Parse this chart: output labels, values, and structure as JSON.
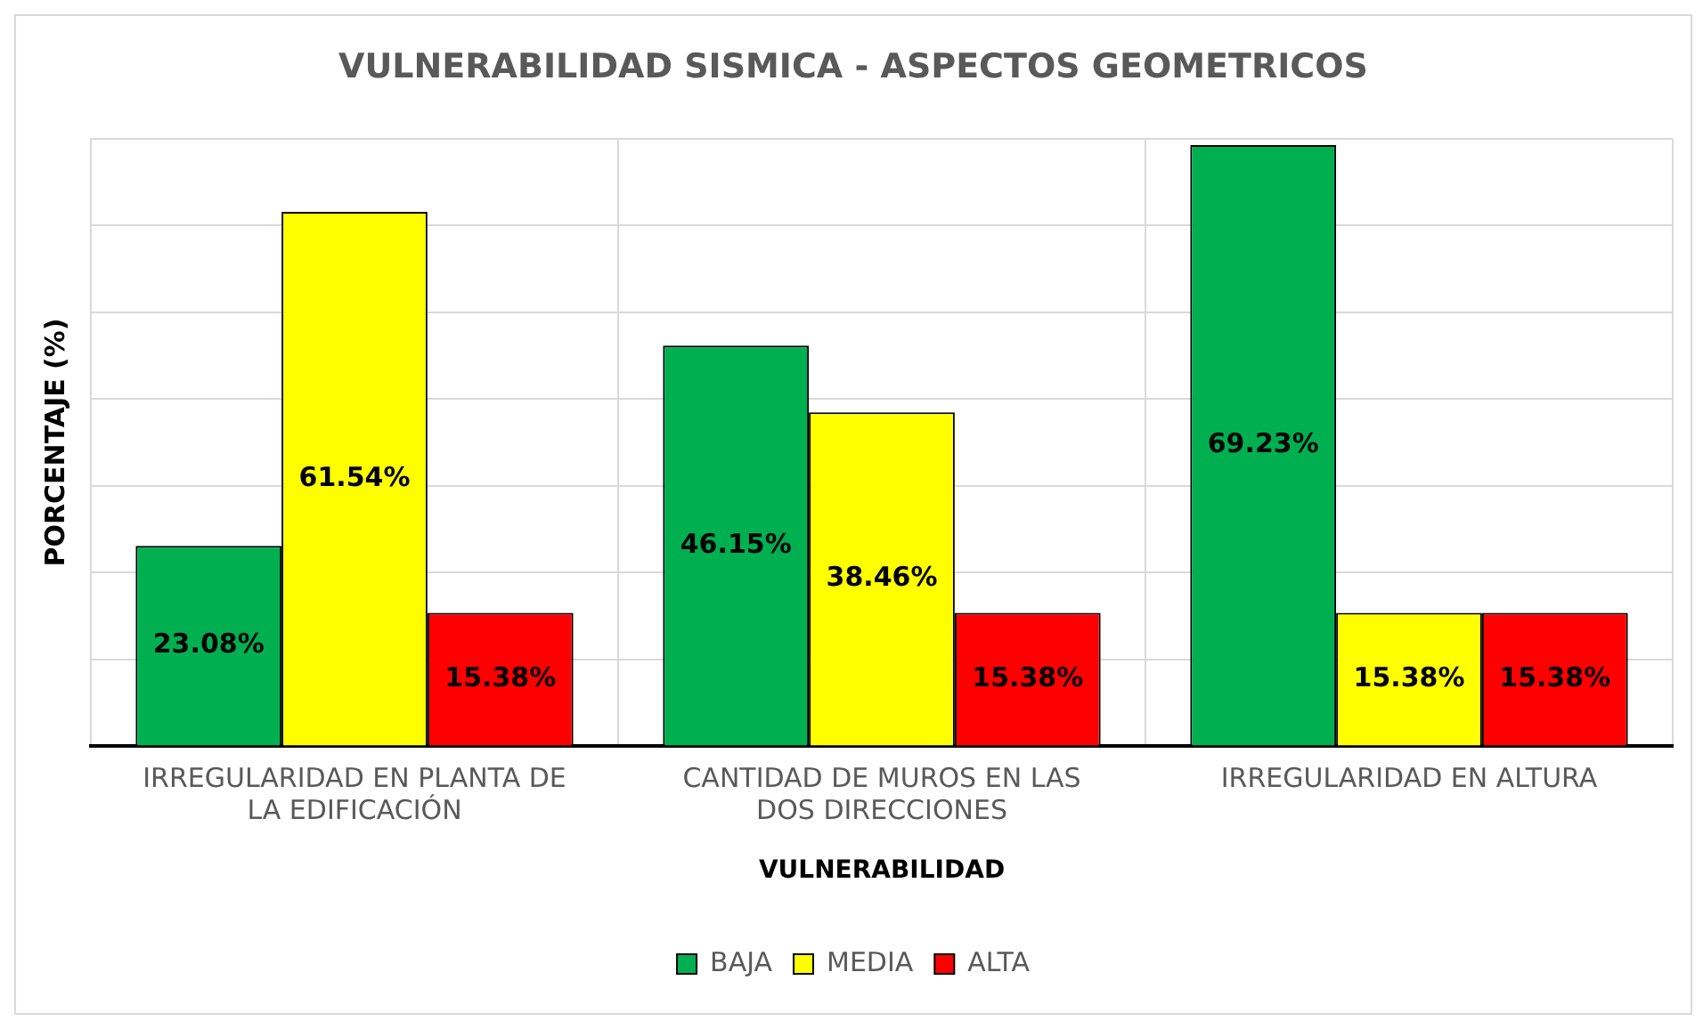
{
  "chart_data": {
    "type": "bar",
    "title": "VULNERABILIDAD SISMICA - ASPECTOS GEOMETRICOS",
    "xlabel": "VULNERABILIDAD",
    "ylabel": "PORCENTAJE (%)",
    "categories": [
      "IRREGULARIDAD EN PLANTA DE LA EDIFICACIÓN",
      "CANTIDAD DE MUROS EN LAS DOS DIRECCIONES",
      "IRREGULARIDAD EN ALTURA"
    ],
    "series": [
      {
        "name": "BAJA",
        "color": "#00b050",
        "values": [
          23.08,
          46.15,
          69.23
        ],
        "value_labels": [
          "23.08%",
          "46.15%",
          "69.23%"
        ]
      },
      {
        "name": "MEDIA",
        "color": "#ffff00",
        "values": [
          61.54,
          38.46,
          15.38
        ],
        "value_labels": [
          "61.54%",
          "38.46%",
          "15.38%"
        ]
      },
      {
        "name": "ALTA",
        "color": "#ff0000",
        "values": [
          15.38,
          15.38,
          15.38
        ],
        "value_labels": [
          "15.38%",
          "15.38%",
          "15.38%"
        ]
      }
    ],
    "tick_labels": "x",
    "grid": true,
    "legend": "bottom"
  }
}
